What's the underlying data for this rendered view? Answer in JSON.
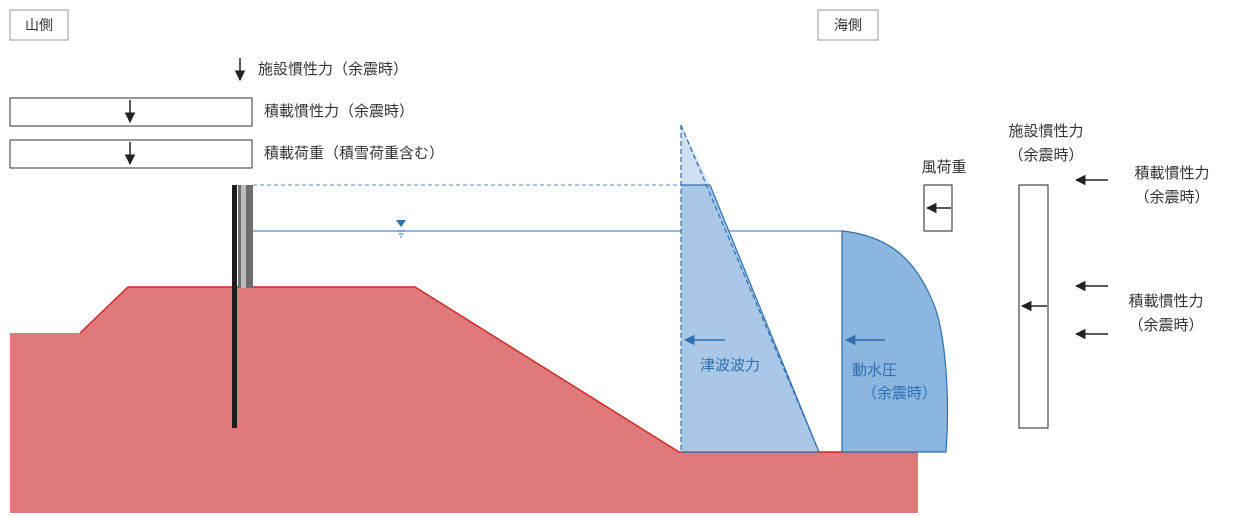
{
  "side_labels": {
    "mountain": "山側",
    "sea": "海側"
  },
  "load_legend": {
    "facility_inertia": "施設慣性力（余震時）",
    "load_inertia": "積載慣性力（余震時）",
    "load_weight": "積載荷重（積雪荷重含む）"
  },
  "forces": {
    "tsunami": "津波波力",
    "hydro_line1": "動水圧",
    "hydro_line2": "（余震時）",
    "wind": "風荷重",
    "facility_inertia_line1": "施設慣性力",
    "facility_inertia_line2": "（余震時）",
    "load_inertia_upper_line1": "積載慣性力",
    "load_inertia_upper_line2": "（余震時）",
    "load_inertia_lower_line1": "積載慣性力",
    "load_inertia_lower_line2": "（余震時）"
  },
  "icons": {
    "water_level": "water-level-symbol",
    "arrow": "arrow"
  },
  "colors": {
    "ground_fill": "#e07a7a",
    "ground_edge": "#cc2a2a",
    "tsunami_fill": "#a9c8e8",
    "hydro_fill": "#8ab6e0",
    "blue_line": "#2f6fad",
    "water_line": "#4d8fcf",
    "text": "#333333"
  }
}
